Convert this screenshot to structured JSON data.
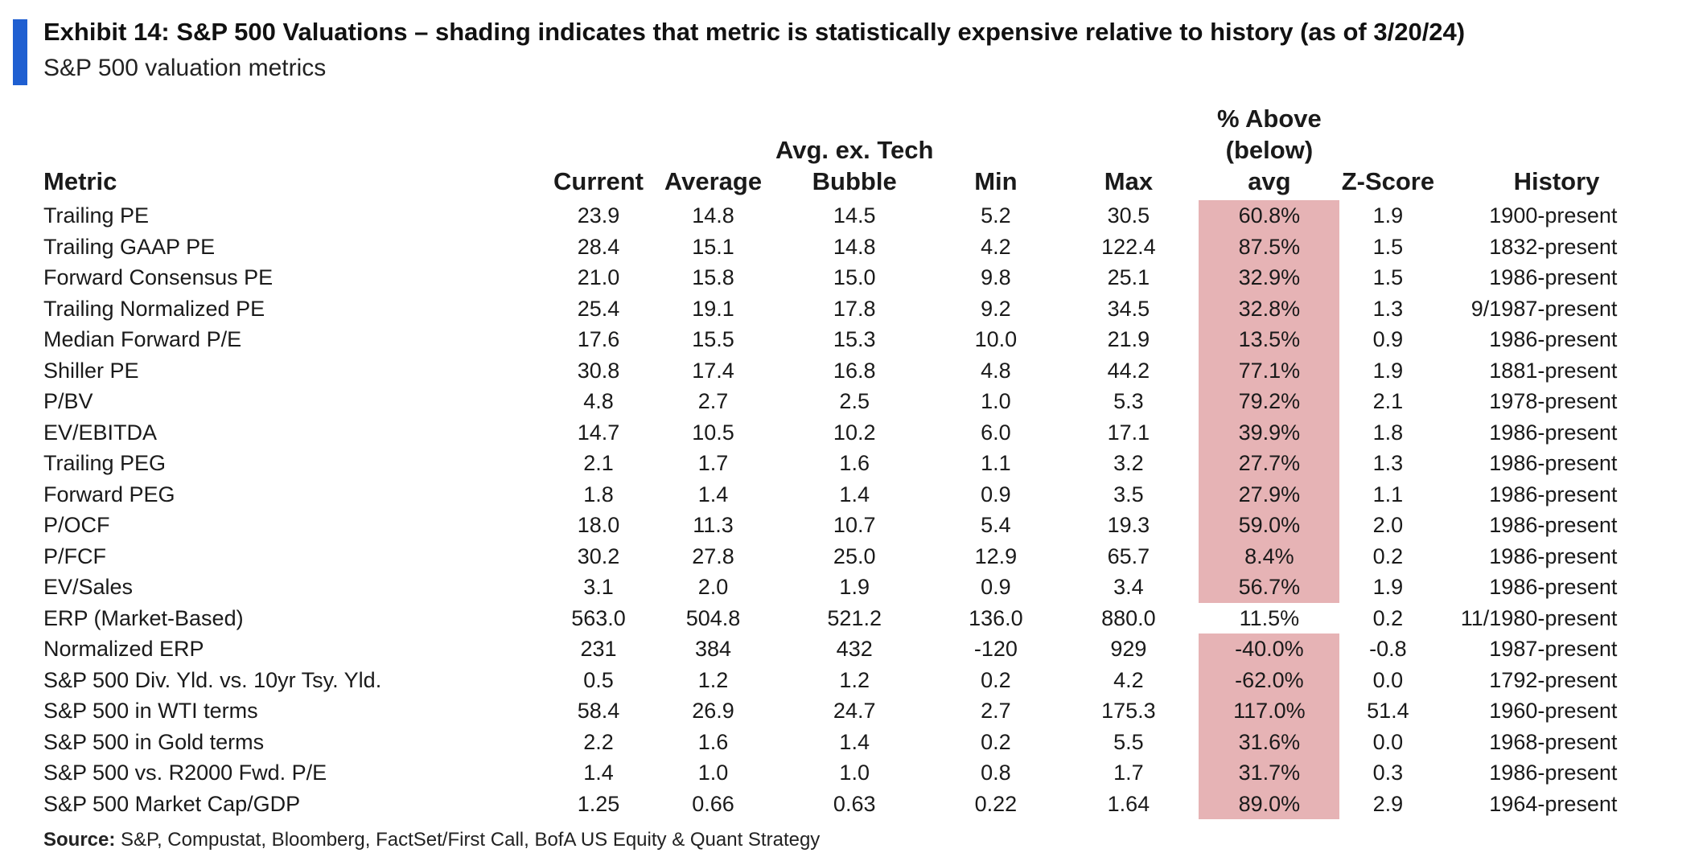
{
  "title": "Exhibit 14: S&P 500 Valuations – shading indicates that metric is statistically expensive relative to history (as of 3/20/24)",
  "subtitle": "S&P 500 valuation metrics",
  "colors": {
    "accent_bar": "#1f5fd1",
    "shading": "#e6b3b5"
  },
  "table": {
    "headers": {
      "metric": "Metric",
      "current": "Current",
      "average": "Average",
      "avg_ex_tech": [
        "Avg. ex. Tech",
        "Bubble"
      ],
      "min": "Min",
      "max": "Max",
      "pct_above": [
        "% Above",
        "(below)",
        "avg"
      ],
      "zscore": "Z-Score",
      "history": "History"
    },
    "rows": [
      {
        "metric": "Trailing PE",
        "current": "23.9",
        "average": "14.8",
        "avg_ex_tech": "14.5",
        "min": "5.2",
        "max": "30.5",
        "pct": "60.8%",
        "shaded": true,
        "z": "1.9",
        "history": "1900-present"
      },
      {
        "metric": "Trailing GAAP PE",
        "current": "28.4",
        "average": "15.1",
        "avg_ex_tech": "14.8",
        "min": "4.2",
        "max": "122.4",
        "pct": "87.5%",
        "shaded": true,
        "z": "1.5",
        "history": "1832-present"
      },
      {
        "metric": "Forward Consensus PE",
        "current": "21.0",
        "average": "15.8",
        "avg_ex_tech": "15.0",
        "min": "9.8",
        "max": "25.1",
        "pct": "32.9%",
        "shaded": true,
        "z": "1.5",
        "history": "1986-present"
      },
      {
        "metric": "Trailing Normalized PE",
        "current": "25.4",
        "average": "19.1",
        "avg_ex_tech": "17.8",
        "min": "9.2",
        "max": "34.5",
        "pct": "32.8%",
        "shaded": true,
        "z": "1.3",
        "history": "9/1987-present"
      },
      {
        "metric": "Median Forward P/E",
        "current": "17.6",
        "average": "15.5",
        "avg_ex_tech": "15.3",
        "min": "10.0",
        "max": "21.9",
        "pct": "13.5%",
        "shaded": true,
        "z": "0.9",
        "history": "1986-present"
      },
      {
        "metric": "Shiller PE",
        "current": "30.8",
        "average": "17.4",
        "avg_ex_tech": "16.8",
        "min": "4.8",
        "max": "44.2",
        "pct": "77.1%",
        "shaded": true,
        "z": "1.9",
        "history": "1881-present"
      },
      {
        "metric": "P/BV",
        "current": "4.8",
        "average": "2.7",
        "avg_ex_tech": "2.5",
        "min": "1.0",
        "max": "5.3",
        "pct": "79.2%",
        "shaded": true,
        "z": "2.1",
        "history": "1978-present"
      },
      {
        "metric": "EV/EBITDA",
        "current": "14.7",
        "average": "10.5",
        "avg_ex_tech": "10.2",
        "min": "6.0",
        "max": "17.1",
        "pct": "39.9%",
        "shaded": true,
        "z": "1.8",
        "history": "1986-present"
      },
      {
        "metric": "Trailing PEG",
        "current": "2.1",
        "average": "1.7",
        "avg_ex_tech": "1.6",
        "min": "1.1",
        "max": "3.2",
        "pct": "27.7%",
        "shaded": true,
        "z": "1.3",
        "history": "1986-present"
      },
      {
        "metric": "Forward PEG",
        "current": "1.8",
        "average": "1.4",
        "avg_ex_tech": "1.4",
        "min": "0.9",
        "max": "3.5",
        "pct": "27.9%",
        "shaded": true,
        "z": "1.1",
        "history": "1986-present"
      },
      {
        "metric": "P/OCF",
        "current": "18.0",
        "average": "11.3",
        "avg_ex_tech": "10.7",
        "min": "5.4",
        "max": "19.3",
        "pct": "59.0%",
        "shaded": true,
        "z": "2.0",
        "history": "1986-present"
      },
      {
        "metric": "P/FCF",
        "current": "30.2",
        "average": "27.8",
        "avg_ex_tech": "25.0",
        "min": "12.9",
        "max": "65.7",
        "pct": "8.4%",
        "shaded": true,
        "z": "0.2",
        "history": "1986-present"
      },
      {
        "metric": "EV/Sales",
        "current": "3.1",
        "average": "2.0",
        "avg_ex_tech": "1.9",
        "min": "0.9",
        "max": "3.4",
        "pct": "56.7%",
        "shaded": true,
        "z": "1.9",
        "history": "1986-present"
      },
      {
        "metric": "ERP (Market-Based)",
        "current": "563.0",
        "average": "504.8",
        "avg_ex_tech": "521.2",
        "min": "136.0",
        "max": "880.0",
        "pct": "11.5%",
        "shaded": false,
        "z": "0.2",
        "history": "11/1980-present"
      },
      {
        "metric": "Normalized ERP",
        "current": "231",
        "average": "384",
        "avg_ex_tech": "432",
        "min": "-120",
        "max": "929",
        "pct": "-40.0%",
        "shaded": true,
        "z": "-0.8",
        "history": "1987-present"
      },
      {
        "metric": "S&P 500 Div. Yld. vs. 10yr Tsy. Yld.",
        "current": "0.5",
        "average": "1.2",
        "avg_ex_tech": "1.2",
        "min": "0.2",
        "max": "4.2",
        "pct": "-62.0%",
        "shaded": true,
        "z": "0.0",
        "history": "1792-present"
      },
      {
        "metric": "S&P 500 in WTI terms",
        "current": "58.4",
        "average": "26.9",
        "avg_ex_tech": "24.7",
        "min": "2.7",
        "max": "175.3",
        "pct": "117.0%",
        "shaded": true,
        "z": "51.4",
        "history": "1960-present"
      },
      {
        "metric": "S&P 500 in Gold terms",
        "current": "2.2",
        "average": "1.6",
        "avg_ex_tech": "1.4",
        "min": "0.2",
        "max": "5.5",
        "pct": "31.6%",
        "shaded": true,
        "z": "0.0",
        "history": "1968-present"
      },
      {
        "metric": "S&P 500 vs. R2000 Fwd. P/E",
        "current": "1.4",
        "average": "1.0",
        "avg_ex_tech": "1.0",
        "min": "0.8",
        "max": "1.7",
        "pct": "31.7%",
        "shaded": true,
        "z": "0.3",
        "history": "1986-present"
      },
      {
        "metric": "S&P 500 Market Cap/GDP",
        "current": "1.25",
        "average": "0.66",
        "avg_ex_tech": "0.63",
        "min": "0.22",
        "max": "1.64",
        "pct": "89.0%",
        "shaded": true,
        "z": "2.9",
        "history": "1964-present"
      }
    ]
  },
  "source": {
    "label": "Source:",
    "text": " S&P, Compustat, Bloomberg, FactSet/First Call, BofA US Equity & Quant Strategy"
  }
}
